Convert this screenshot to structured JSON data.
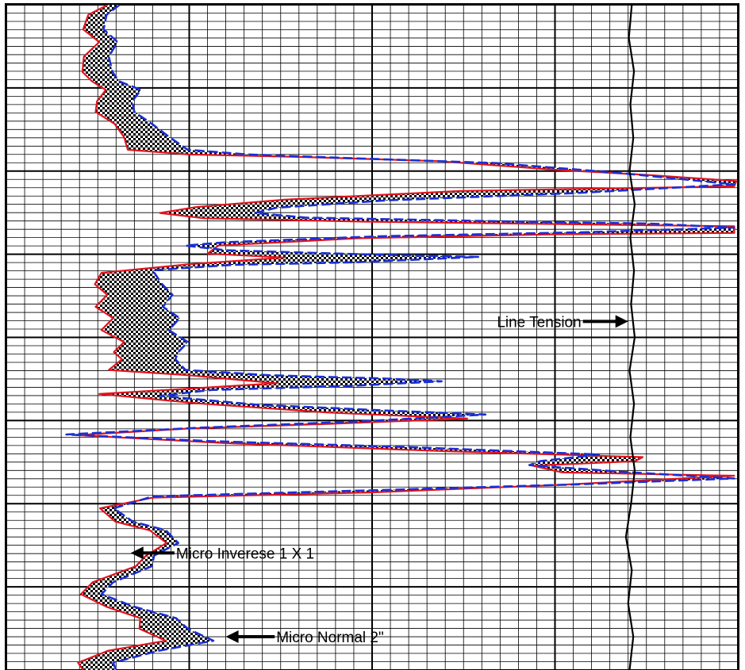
{
  "chart_data": {
    "type": "line",
    "title": "",
    "xlabel": "",
    "ylabel": "",
    "xlim": [
      0,
      100
    ],
    "ylim": [
      0,
      100
    ],
    "grid": true,
    "legend": "none",
    "series": [
      {
        "name": "Micro Inverese 1 X 1",
        "color": "#e0141e",
        "dash": "solid",
        "points": [
          [
            13.9,
            0
          ],
          [
            11.2,
            1.5
          ],
          [
            10.5,
            3.7
          ],
          [
            12.7,
            5.6
          ],
          [
            10.6,
            7.8
          ],
          [
            10.4,
            10.1
          ],
          [
            11.7,
            11.5
          ],
          [
            13.6,
            12.8
          ],
          [
            12.4,
            14.5
          ],
          [
            12.2,
            16.1
          ],
          [
            14.8,
            17.9
          ],
          [
            16.1,
            19.9
          ],
          [
            16.6,
            21.8
          ],
          [
            25.0,
            22.5
          ],
          [
            41.0,
            22.9
          ],
          [
            59.0,
            23.5
          ],
          [
            75.0,
            24.8
          ],
          [
            88.0,
            25.6
          ],
          [
            99.8,
            26.5
          ],
          [
            99.5,
            27.3
          ],
          [
            62.0,
            28.0
          ],
          [
            38.0,
            29.3
          ],
          [
            26.0,
            30.4
          ],
          [
            21.0,
            31.3
          ],
          [
            27.0,
            32.1
          ],
          [
            49.0,
            32.6
          ],
          [
            78.0,
            33.0
          ],
          [
            99.5,
            33.3
          ],
          [
            99.5,
            34.3
          ],
          [
            75.0,
            34.5
          ],
          [
            48.0,
            35.1
          ],
          [
            29.0,
            36.2
          ],
          [
            27.5,
            37.4
          ],
          [
            38.0,
            38.0
          ],
          [
            25.0,
            39.0
          ],
          [
            13.0,
            40.3
          ],
          [
            12.1,
            42.0
          ],
          [
            13.8,
            43.6
          ],
          [
            12.2,
            45.4
          ],
          [
            14.6,
            47.1
          ],
          [
            13.0,
            48.9
          ],
          [
            16.1,
            50.7
          ],
          [
            14.7,
            52.2
          ],
          [
            15.8,
            53.3
          ],
          [
            14.0,
            54.9
          ],
          [
            25.0,
            55.7
          ],
          [
            37.0,
            56.9
          ],
          [
            25.0,
            57.7
          ],
          [
            12.7,
            58.5
          ],
          [
            26.0,
            59.9
          ],
          [
            44.0,
            61.3
          ],
          [
            63.0,
            62.2
          ],
          [
            44.0,
            63.0
          ],
          [
            25.0,
            63.7
          ],
          [
            9.6,
            64.7
          ],
          [
            30.0,
            65.9
          ],
          [
            60.0,
            67.1
          ],
          [
            87.0,
            68.0
          ],
          [
            86.0,
            68.6
          ],
          [
            72.0,
            69.3
          ],
          [
            76.0,
            70.3
          ],
          [
            99.5,
            70.8
          ],
          [
            75.0,
            72.2
          ],
          [
            50.0,
            73.3
          ],
          [
            20.0,
            74.1
          ],
          [
            12.8,
            75.7
          ],
          [
            14.9,
            77.7
          ],
          [
            19.6,
            79.0
          ],
          [
            21.9,
            80.9
          ],
          [
            19.1,
            82.8
          ],
          [
            17.7,
            84.4
          ],
          [
            11.8,
            86.8
          ],
          [
            10.2,
            88.6
          ],
          [
            13.7,
            90.5
          ],
          [
            18.3,
            92.2
          ],
          [
            18.2,
            93.8
          ],
          [
            21.8,
            95.6
          ],
          [
            13.9,
            97.1
          ],
          [
            9.8,
            98.9
          ],
          [
            10.5,
            100
          ]
        ]
      },
      {
        "name": "Micro Normal 2\"",
        "color": "#1a2fd4",
        "dash": "dashed",
        "points": [
          [
            15.5,
            0
          ],
          [
            13.7,
            1.5
          ],
          [
            13.3,
            3.7
          ],
          [
            15.2,
            5.6
          ],
          [
            14.0,
            7.8
          ],
          [
            14.5,
            10.1
          ],
          [
            15.4,
            11.5
          ],
          [
            18.4,
            12.8
          ],
          [
            17.2,
            14.5
          ],
          [
            17.5,
            16.1
          ],
          [
            19.9,
            17.9
          ],
          [
            22.3,
            19.9
          ],
          [
            24.8,
            21.8
          ],
          [
            33.0,
            22.5
          ],
          [
            48.0,
            23.1
          ],
          [
            67.0,
            23.8
          ],
          [
            84.0,
            25.3
          ],
          [
            99.5,
            27.0
          ],
          [
            78.0,
            28.3
          ],
          [
            52.0,
            29.4
          ],
          [
            37.0,
            30.5
          ],
          [
            34.0,
            31.3
          ],
          [
            41.0,
            32.0
          ],
          [
            65.0,
            32.5
          ],
          [
            88.0,
            32.9
          ],
          [
            99.5,
            33.5
          ],
          [
            79.0,
            34.2
          ],
          [
            51.0,
            34.8
          ],
          [
            30.0,
            35.7
          ],
          [
            24.5,
            36.2
          ],
          [
            30.0,
            36.9
          ],
          [
            48.0,
            37.5
          ],
          [
            64.5,
            37.9
          ],
          [
            48.0,
            38.7
          ],
          [
            31.0,
            39.1
          ],
          [
            20.0,
            39.9
          ],
          [
            21.2,
            41.9
          ],
          [
            22.7,
            43.6
          ],
          [
            21.4,
            45.4
          ],
          [
            23.7,
            47.1
          ],
          [
            22.2,
            48.9
          ],
          [
            24.8,
            50.7
          ],
          [
            23.5,
            52.2
          ],
          [
            23.1,
            53.3
          ],
          [
            24.5,
            54.9
          ],
          [
            36.0,
            55.7
          ],
          [
            52.0,
            56.2
          ],
          [
            59.5,
            56.6
          ],
          [
            47.0,
            57.3
          ],
          [
            28.0,
            57.9
          ],
          [
            21.0,
            58.8
          ],
          [
            34.0,
            60.1
          ],
          [
            52.0,
            61.0
          ],
          [
            65.5,
            61.6
          ],
          [
            49.0,
            62.6
          ],
          [
            26.0,
            63.6
          ],
          [
            8.2,
            64.6
          ],
          [
            28.0,
            65.6
          ],
          [
            55.0,
            66.5
          ],
          [
            81.0,
            67.6
          ],
          [
            73.0,
            68.6
          ],
          [
            71.5,
            69.2
          ],
          [
            84.0,
            70.2
          ],
          [
            99.5,
            71.2
          ],
          [
            78.0,
            72.1
          ],
          [
            53.0,
            72.9
          ],
          [
            20.0,
            73.9
          ],
          [
            14.7,
            75.7
          ],
          [
            17.3,
            77.7
          ],
          [
            21.8,
            79.0
          ],
          [
            23.5,
            80.9
          ],
          [
            20.2,
            82.8
          ],
          [
            19.9,
            84.4
          ],
          [
            14.6,
            86.8
          ],
          [
            13.0,
            88.6
          ],
          [
            17.5,
            90.5
          ],
          [
            23.2,
            92.2
          ],
          [
            24.8,
            93.8
          ],
          [
            28.3,
            95.6
          ],
          [
            20.8,
            97.1
          ],
          [
            14.6,
            98.9
          ],
          [
            15.0,
            100
          ]
        ]
      },
      {
        "name": "Line Tension",
        "color": "#000000",
        "dash": "solid",
        "points": [
          [
            85.5,
            0
          ],
          [
            85.1,
            5
          ],
          [
            85.8,
            10
          ],
          [
            85.3,
            15
          ],
          [
            85.7,
            20
          ],
          [
            85.2,
            25
          ],
          [
            85.9,
            30
          ],
          [
            85.3,
            35
          ],
          [
            85.8,
            40
          ],
          [
            85.4,
            45
          ],
          [
            85.9,
            50
          ],
          [
            85.2,
            55
          ],
          [
            85.8,
            60
          ],
          [
            85.3,
            65
          ],
          [
            85.9,
            70
          ],
          [
            85.4,
            75
          ],
          [
            84.7,
            80
          ],
          [
            85.5,
            85
          ],
          [
            85.0,
            90
          ],
          [
            85.7,
            95
          ],
          [
            85.2,
            100
          ]
        ]
      }
    ],
    "annotations": [
      {
        "text": "Line Tension",
        "arrow": "right",
        "y": 47.6,
        "x_text_end": 78.6,
        "x_arrow_tip": 85.0
      },
      {
        "text": "Micro Inverese 1 X 1",
        "arrow": "left",
        "y": 82.4,
        "x_text_start": 23.2,
        "x_arrow_tip": 17.0
      },
      {
        "text": "Micro Normal 2\"",
        "arrow": "left",
        "y": 95.0,
        "x_text_start": 36.9,
        "x_arrow_tip": 30.0
      }
    ]
  }
}
